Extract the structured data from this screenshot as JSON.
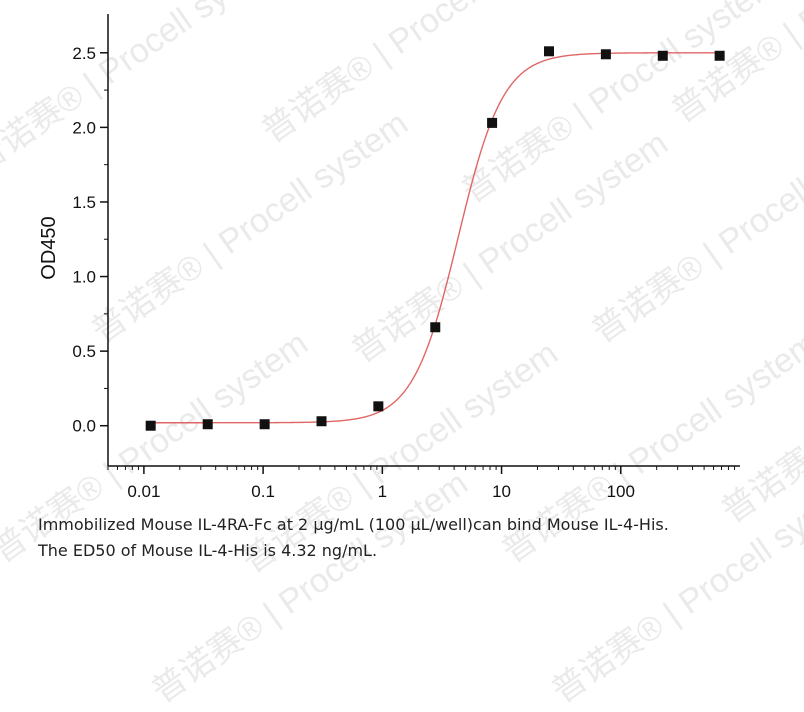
{
  "watermark": {
    "brand": "Procell",
    "sub": "system",
    "cn": "普诺赛®"
  },
  "caption": {
    "line1": "Immobilized Mouse IL-4RA-Fc at 2 μg/mL (100 μL/well)can bind Mouse IL-4-His.",
    "line2": "The ED50 of Mouse IL-4-His is 4.32 ng/mL."
  },
  "chart_data": {
    "type": "scatter",
    "title": "",
    "xlabel": "",
    "ylabel": "OD450",
    "xscale": "log",
    "xlim": [
      0.005,
      1000
    ],
    "ylim": [
      -0.27,
      2.76
    ],
    "xticks": [
      0.01,
      0.1,
      1,
      10,
      100
    ],
    "xtick_labels": [
      "0.01",
      "0.1",
      "1",
      "10",
      "100"
    ],
    "yticks": [
      0.0,
      0.5,
      1.0,
      1.5,
      2.0,
      2.5
    ],
    "ytick_labels": [
      "0.0",
      "0.5",
      "1.0",
      "1.5",
      "2.0",
      "2.5"
    ],
    "grid": false,
    "points": {
      "x": [
        0.0114,
        0.0343,
        0.103,
        0.309,
        0.926,
        2.78,
        8.33,
        25,
        75,
        225,
        675
      ],
      "y": [
        0.0,
        0.01,
        0.01,
        0.03,
        0.13,
        0.66,
        2.03,
        2.51,
        2.49,
        2.48,
        2.48
      ],
      "marker": "square",
      "color": "#111111"
    },
    "fit": {
      "model": "4PL",
      "bottom": 0.02,
      "top": 2.5,
      "ec50": 4.32,
      "hill": 2.3,
      "color": "#e06666"
    }
  }
}
